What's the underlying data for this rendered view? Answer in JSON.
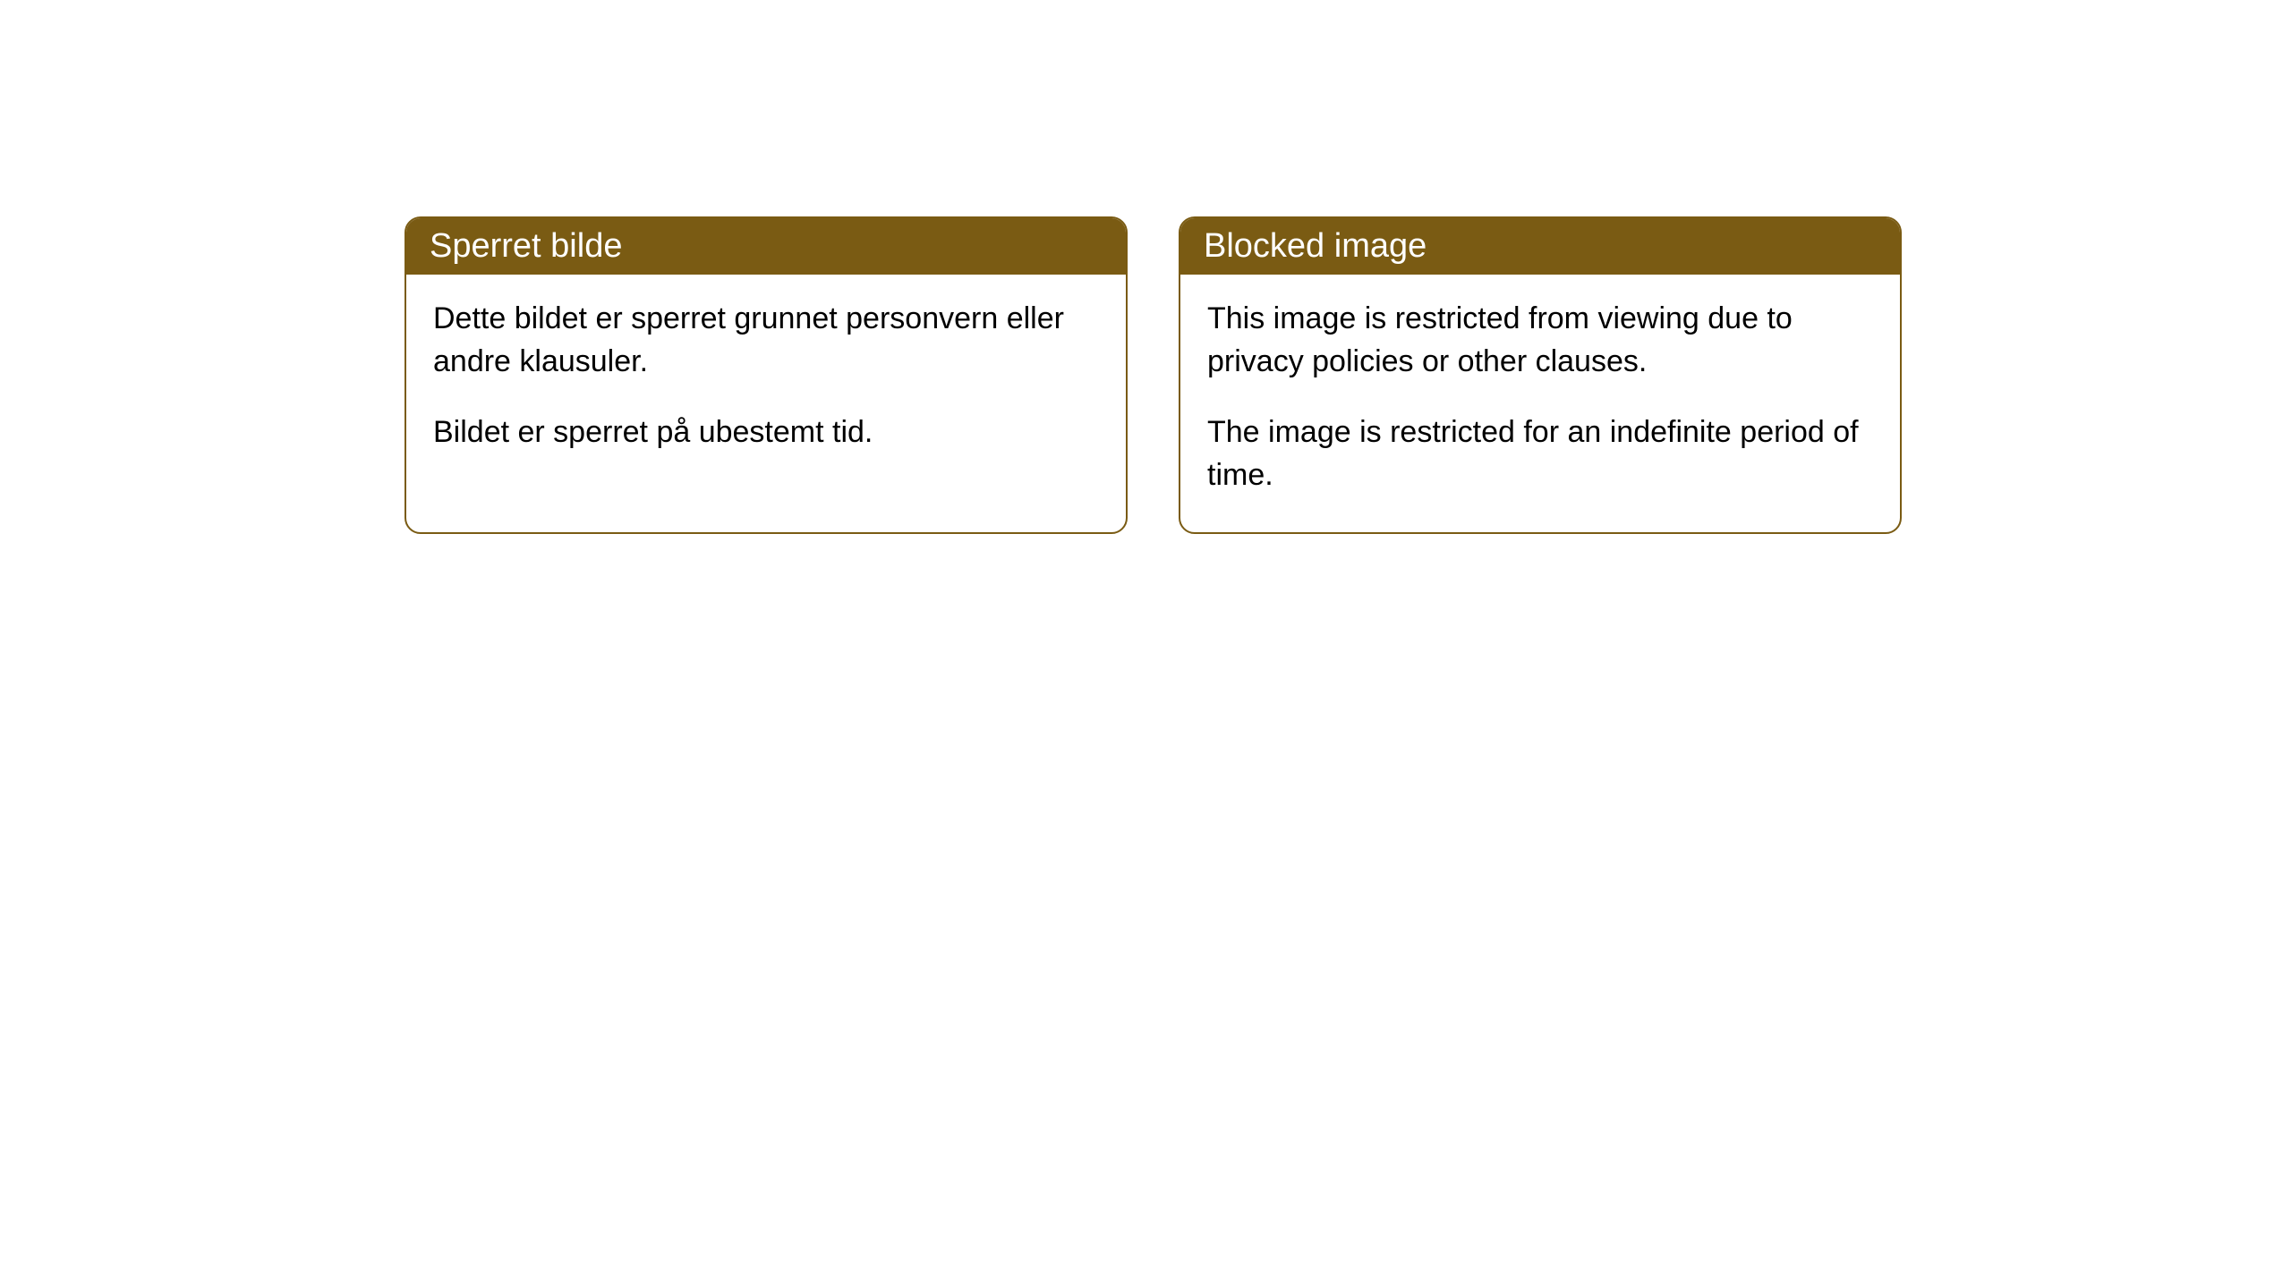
{
  "cards": [
    {
      "header": "Sperret bilde",
      "paragraphs": [
        "Dette bildet er sperret grunnet personvern eller andre klausuler.",
        "Bildet er sperret på ubestemt tid."
      ]
    },
    {
      "header": "Blocked image",
      "paragraphs": [
        "This image is restricted from viewing due to privacy policies or other clauses.",
        "The image is restricted for an indefinite period of time."
      ]
    }
  ],
  "style": {
    "header_bg_color": "#7a5b13",
    "header_text_color": "#ffffff",
    "border_color": "#7a5b13",
    "body_bg_color": "#ffffff",
    "body_text_color": "#000000",
    "border_radius": 18,
    "header_fontsize": 38,
    "body_fontsize": 34
  }
}
